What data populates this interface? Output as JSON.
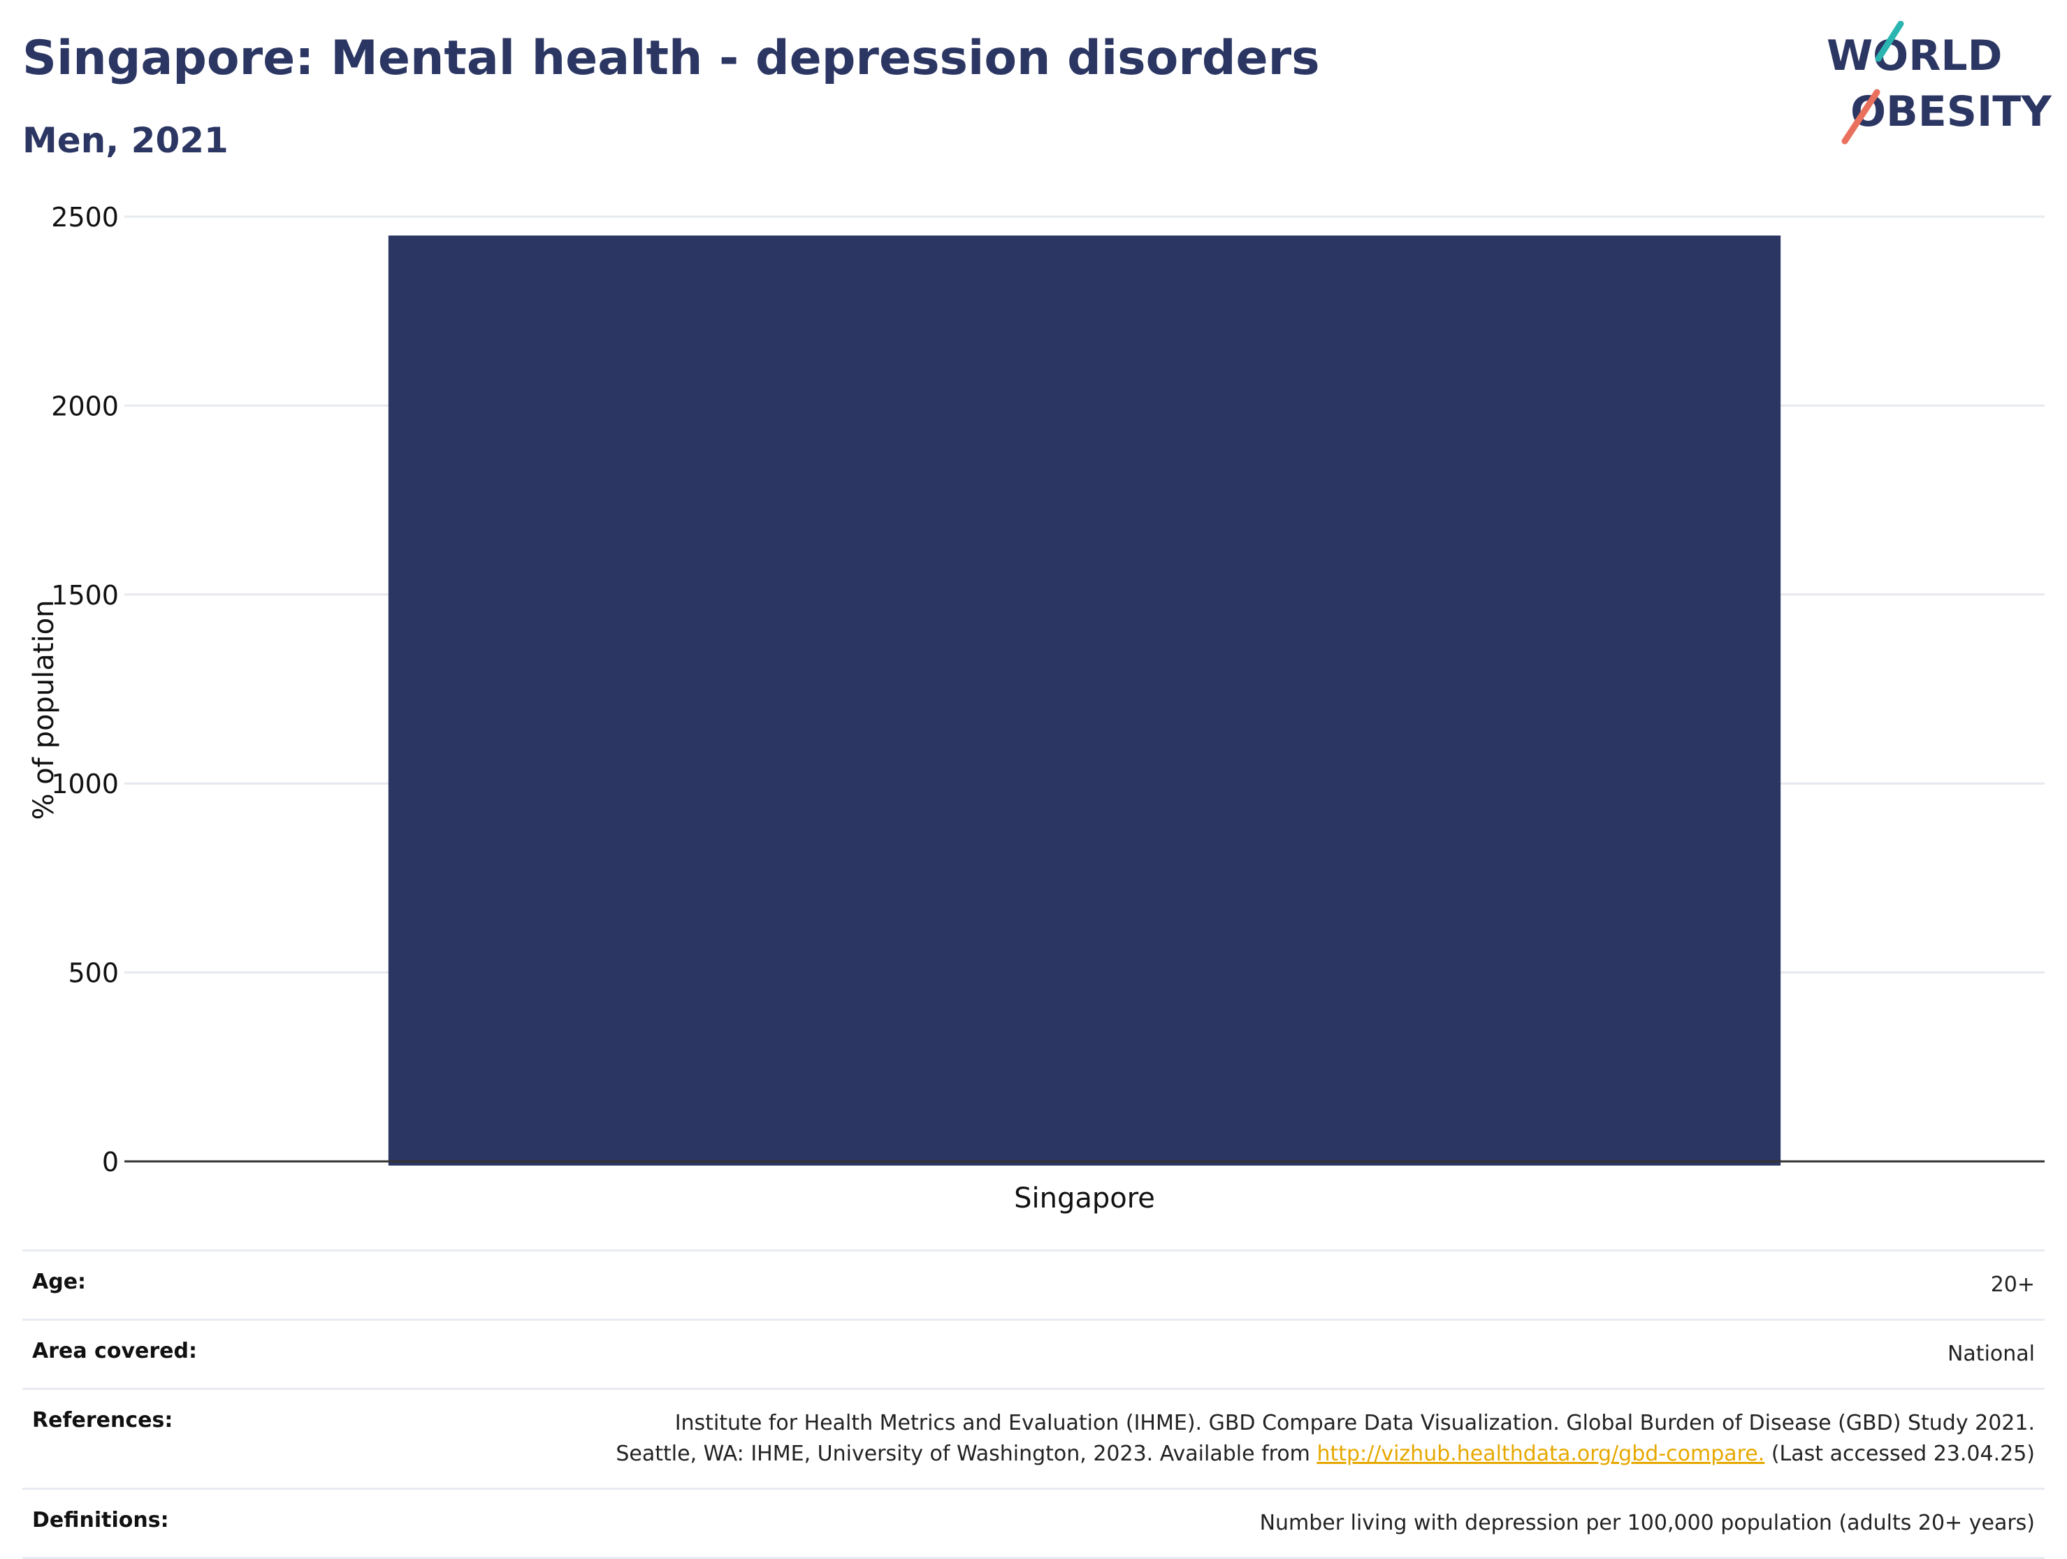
{
  "title": "Singapore: Mental health - depression disorders",
  "subtitle": "Men, 2021",
  "logo": {
    "line1": "WORLD",
    "line2": "OBESITY"
  },
  "chart_data": {
    "type": "bar",
    "categories": [
      "Singapore"
    ],
    "values": [
      2450
    ],
    "ylabel": "% of population",
    "xlabel": "",
    "ylim": [
      0,
      2500
    ],
    "yticks": [
      0,
      500,
      1000,
      1500,
      2000,
      2500
    ],
    "bar_color": "#2b3663",
    "grid": true
  },
  "meta": {
    "age_label": "Age:",
    "age_value": "20+",
    "area_label": "Area covered:",
    "area_value": "National",
    "ref_label": "References:",
    "ref_line1": "Institute for Health Metrics and Evaluation (IHME). GBD Compare Data Visualization. Global Burden of Disease (GBD) Study 2021.",
    "ref_line2_pre": "Seattle, WA: IHME, University of Washington, 2023. Available from ",
    "ref_link": "http://vizhub.healthdata.org/gbd-compare.",
    "ref_line2_post": " (Last accessed 23.04.25)",
    "def_label": "Definitions:",
    "def_value": "Number living with depression per 100,000 population (adults 20+ years)"
  },
  "colors": {
    "navy": "#2b3663",
    "teal": "#2bb5b0",
    "coral": "#e8705c",
    "link": "#e6a800"
  }
}
